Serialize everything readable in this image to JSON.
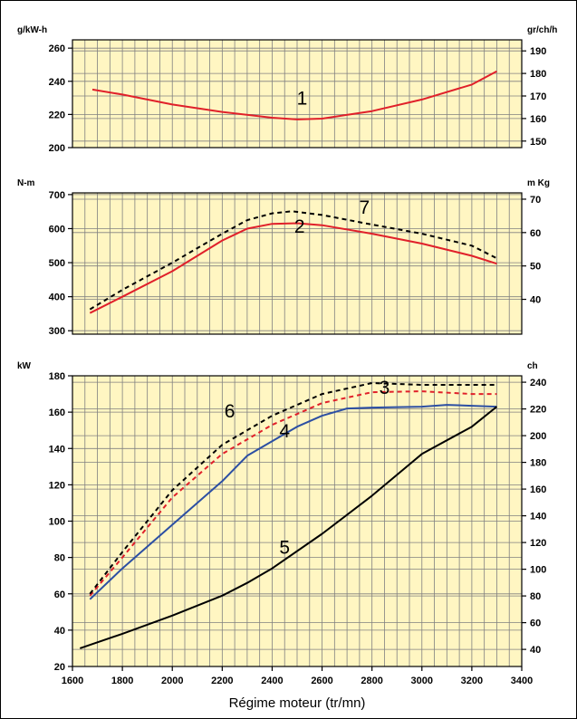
{
  "colors": {
    "panel_bg": "#fff6c2",
    "grid": "#808080",
    "red": "#e0202a",
    "blue": "#2c4fa3",
    "black": "#000000"
  },
  "x_axis_label": "Régime moteur (tr/mn)",
  "chart_data": [
    {
      "type": "line",
      "ylabel_left": "g/kW-h",
      "ylabel_right": "gr/ch/h",
      "ylim": [
        200,
        265
      ],
      "yticks_left": [
        200,
        220,
        240,
        260
      ],
      "yticks_right": [
        150,
        160,
        170,
        180,
        190
      ],
      "yright_conversion": {
        "factor": 0.7355,
        "offset": 0
      },
      "xlim": [
        1600,
        3400
      ],
      "series": [
        {
          "name": "1",
          "color": "#e0202a",
          "dashed": false,
          "label_at": [
            2520,
            226
          ],
          "x": [
            1680,
            1800,
            2000,
            2200,
            2400,
            2500,
            2600,
            2800,
            3000,
            3200,
            3300
          ],
          "y": [
            235,
            232,
            226,
            221.5,
            218,
            217,
            217.5,
            222,
            229,
            238,
            246
          ]
        }
      ]
    },
    {
      "type": "line",
      "ylabel_left": "N-m",
      "ylabel_right": "m Kg",
      "ylim": [
        290,
        705
      ],
      "yticks_left": [
        300,
        400,
        500,
        600,
        700
      ],
      "yticks_right": [
        40,
        50,
        60,
        70
      ],
      "yright_conversion": {
        "factor": 0.10197,
        "offset": 0
      },
      "xlim": [
        1600,
        3400
      ],
      "series": [
        {
          "name": "2",
          "color": "#e0202a",
          "dashed": false,
          "label_at": [
            2510,
            588
          ],
          "x": [
            1670,
            1800,
            2000,
            2200,
            2300,
            2400,
            2500,
            2600,
            2800,
            3000,
            3200,
            3300
          ],
          "y": [
            352,
            400,
            475,
            565,
            600,
            614,
            616,
            610,
            585,
            556,
            520,
            497
          ]
        },
        {
          "name": "7",
          "color": "#000000",
          "dashed": true,
          "label_at": [
            2770,
            644
          ],
          "x": [
            1670,
            1800,
            2000,
            2200,
            2300,
            2400,
            2480,
            2600,
            2800,
            3000,
            3200,
            3300
          ],
          "y": [
            363,
            420,
            500,
            585,
            625,
            645,
            651,
            640,
            612,
            585,
            550,
            513
          ]
        }
      ]
    },
    {
      "type": "line",
      "ylabel_left": "kW",
      "ylabel_right": "ch",
      "ylim": [
        20,
        180
      ],
      "yticks_left": [
        20,
        40,
        60,
        80,
        100,
        120,
        140,
        160,
        180
      ],
      "yticks_right": [
        40,
        60,
        80,
        100,
        120,
        140,
        160,
        180,
        200,
        220,
        240
      ],
      "yright_conversion": {
        "factor": 1.36,
        "offset": 0
      },
      "xlim": [
        1600,
        3400
      ],
      "xticks": [
        1600,
        1800,
        2000,
        2200,
        2400,
        2600,
        2800,
        3000,
        3200,
        3400
      ],
      "series": [
        {
          "name": "3",
          "color": "#e0202a",
          "dashed": true,
          "label_at": [
            2850,
            170
          ],
          "x": [
            1670,
            1800,
            2000,
            2200,
            2400,
            2600,
            2800,
            3000,
            3200,
            3300
          ],
          "y": [
            59,
            80,
            113,
            137,
            153,
            165,
            171,
            171.5,
            170,
            170
          ]
        },
        {
          "name": "4",
          "color": "#2c4fa3",
          "dashed": false,
          "label_at": [
            2450,
            146
          ],
          "x": [
            1670,
            1800,
            2000,
            2200,
            2300,
            2400,
            2500,
            2600,
            2700,
            2800,
            3000,
            3100,
            3200,
            3300
          ],
          "y": [
            57,
            74,
            98,
            122,
            136,
            144,
            152,
            158,
            162,
            162.5,
            163,
            164,
            163.5,
            163
          ]
        },
        {
          "name": "5",
          "color": "#000000",
          "dashed": false,
          "label_at": [
            2450,
            82
          ],
          "x": [
            1630,
            1800,
            2000,
            2200,
            2300,
            2400,
            2600,
            2800,
            3000,
            3200,
            3300
          ],
          "y": [
            30,
            38,
            48,
            59,
            66,
            74,
            93,
            114,
            137,
            152,
            163
          ]
        },
        {
          "name": "6",
          "color": "#000000",
          "dashed": true,
          "label_at": [
            2230,
            157
          ],
          "x": [
            1670,
            1800,
            2000,
            2200,
            2400,
            2600,
            2800,
            3000,
            3200,
            3300
          ],
          "y": [
            60,
            83,
            117,
            142,
            158,
            170,
            176,
            175,
            175,
            175
          ]
        }
      ]
    }
  ]
}
